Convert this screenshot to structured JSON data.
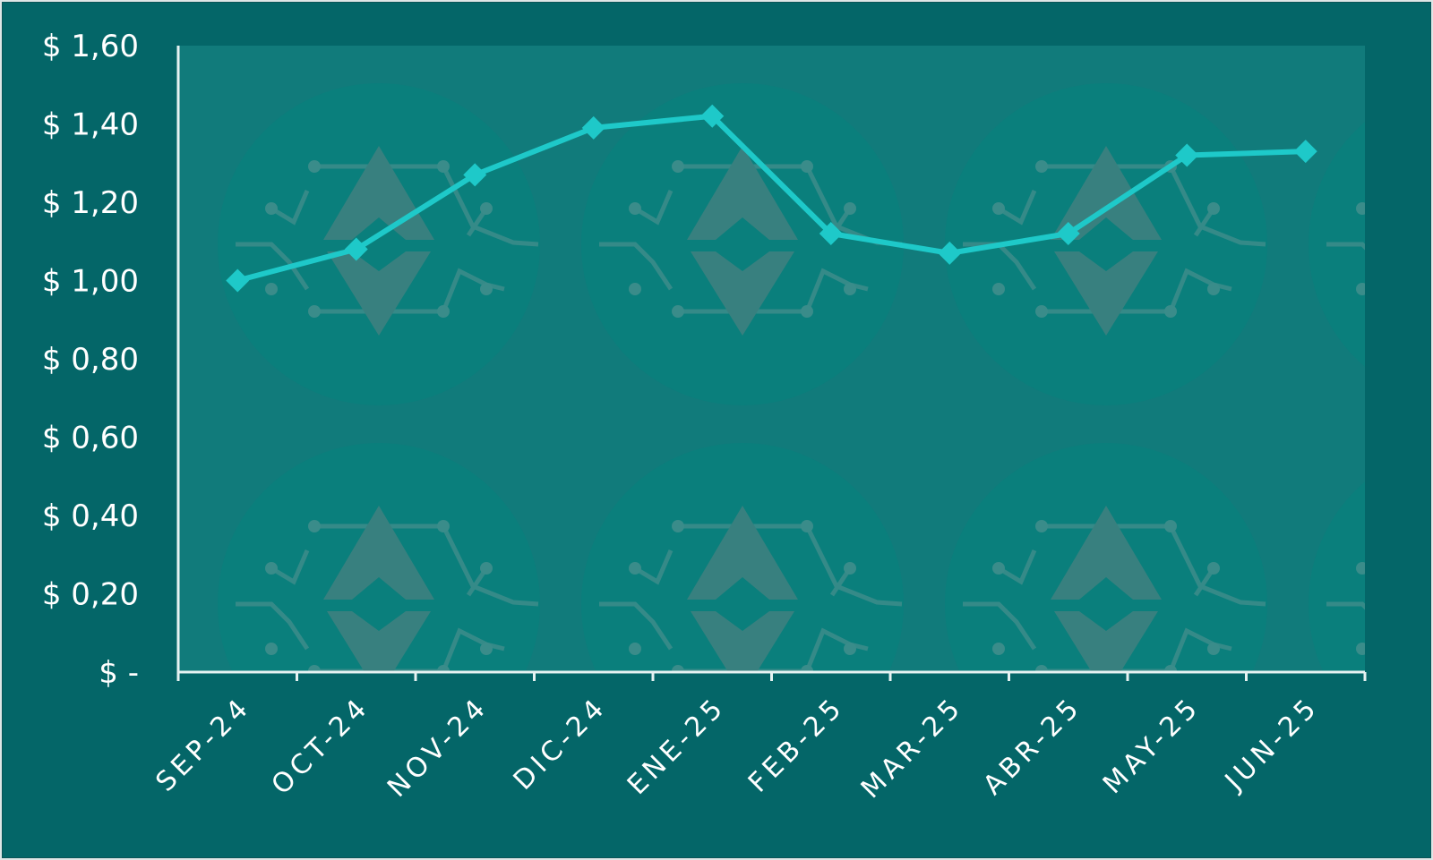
{
  "chart_data": {
    "type": "line",
    "title": "",
    "xlabel": "",
    "ylabel": "",
    "categories": [
      "SEP-24",
      "OCT-24",
      "NOV-24",
      "DIC-24",
      "ENE-25",
      "FEB-25",
      "MAR-25",
      "ABR-25",
      "MAY-25",
      "JUN-25"
    ],
    "series": [
      {
        "values": [
          1.0,
          1.08,
          1.27,
          1.39,
          1.42,
          1.12,
          1.07,
          1.12,
          1.32,
          1.33
        ]
      }
    ],
    "ylim": [
      0,
      1.6
    ],
    "yticks": [
      0,
      0.2,
      0.4,
      0.6,
      0.8,
      1.0,
      1.2,
      1.4,
      1.6
    ],
    "ytick_labels": [
      "$ -",
      "$ 0,20",
      "$ 0,40",
      "$ 0,60",
      "$ 0,80",
      "$ 1,00",
      "$ 1,20",
      "$ 1,40",
      "$ 1,60"
    ],
    "grid": false,
    "legend": "none",
    "marker": "diamond"
  },
  "colors": {
    "background": "#046668",
    "plot_area": "#117b7b",
    "line": "#1ec9c9",
    "axis": "#e6f2f2",
    "text": "#ffffff",
    "watermark_circle": "#0a7f7c",
    "watermark_shape": "#38807f"
  },
  "watermark_icon": "ethereum-coin-icon"
}
